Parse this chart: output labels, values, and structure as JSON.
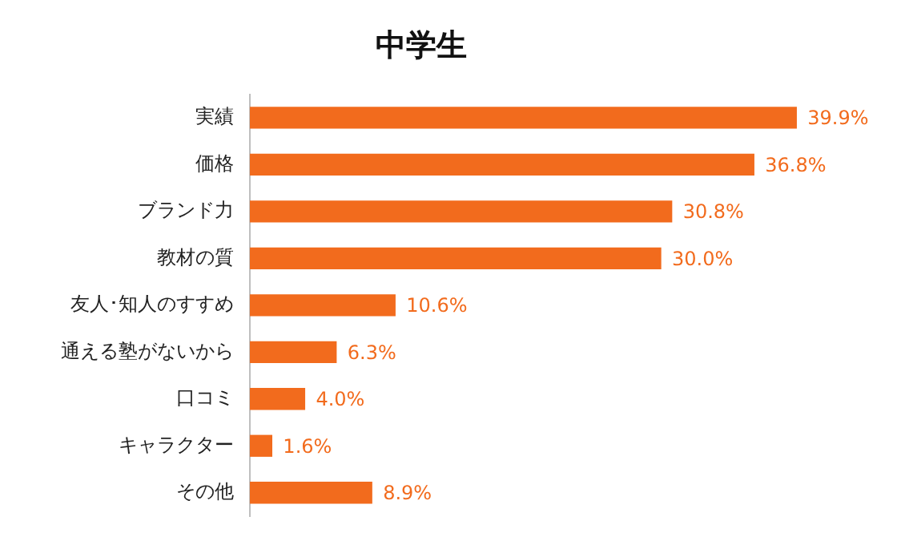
{
  "chart_data": {
    "type": "bar",
    "orientation": "horizontal",
    "title": "中学生",
    "categories": [
      "実績",
      "価格",
      "ブランド力",
      "教材の質",
      "友人･知人のすすめ",
      "通える塾がないから",
      "口コミ",
      "キャラクター",
      "その他"
    ],
    "values": [
      39.9,
      36.8,
      30.8,
      30.0,
      10.6,
      6.3,
      4.0,
      1.6,
      8.9
    ],
    "value_labels": [
      "39.9%",
      "36.8%",
      "30.8%",
      "30.0%",
      "10.6%",
      "6.3%",
      "4.0%",
      "1.6%",
      "8.9%"
    ],
    "color": "#f26b1d",
    "tick_labels": "y",
    "grid": false,
    "legend": false
  }
}
